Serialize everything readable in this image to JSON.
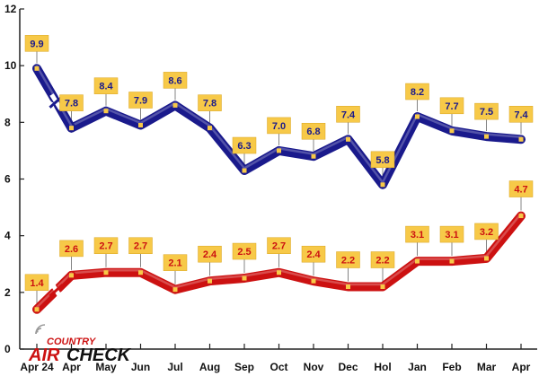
{
  "chart_data": {
    "type": "line",
    "categories": [
      "Apr 24",
      "Apr",
      "May",
      "Jun",
      "Jul",
      "Aug",
      "Sep",
      "Oct",
      "Nov",
      "Dec",
      "Hol",
      "Jan",
      "Feb",
      "Mar",
      "Apr"
    ],
    "series": [
      {
        "name": "",
        "color": "#1a1a8c",
        "values": [
          9.9,
          7.8,
          8.4,
          7.9,
          8.6,
          7.8,
          6.3,
          7.0,
          6.8,
          7.4,
          5.8,
          8.2,
          7.7,
          7.5,
          7.4
        ]
      },
      {
        "name": "",
        "color": "#cc1111",
        "values": [
          1.4,
          2.6,
          2.7,
          2.7,
          2.1,
          2.4,
          2.5,
          2.7,
          2.4,
          2.2,
          2.2,
          3.1,
          3.1,
          3.2,
          4.7
        ]
      }
    ],
    "value_labels": {
      "series_0": [
        "9.9",
        "7.8",
        "8.4",
        "7.9",
        "8.6",
        "7.8",
        "6.3",
        "7.0",
        "6.8",
        "7.4",
        "5.8",
        "8.2",
        "7.7",
        "7.5",
        "7.4"
      ],
      "series_1": [
        "1.4",
        "2.6",
        "2.7",
        "2.7",
        "2.1",
        "2.4",
        "2.5",
        "2.7",
        "2.4",
        "2.2",
        "2.2",
        "3.1",
        "3.1",
        "3.2",
        "4.7"
      ]
    },
    "y_ticks": [
      "0",
      "2",
      "4",
      "6",
      "8",
      "10",
      "12"
    ],
    "ylim": [
      0,
      12
    ],
    "axis_break_after_first_point": true,
    "grid": false,
    "label_box_color": "#f7c948",
    "title": "",
    "xlabel": "",
    "ylabel": ""
  },
  "logo": {
    "line1": "COUNTRY",
    "line2_left": "AIR",
    "line2_right": "CHECK",
    "red": "#cc1111",
    "dark": "#111111"
  }
}
